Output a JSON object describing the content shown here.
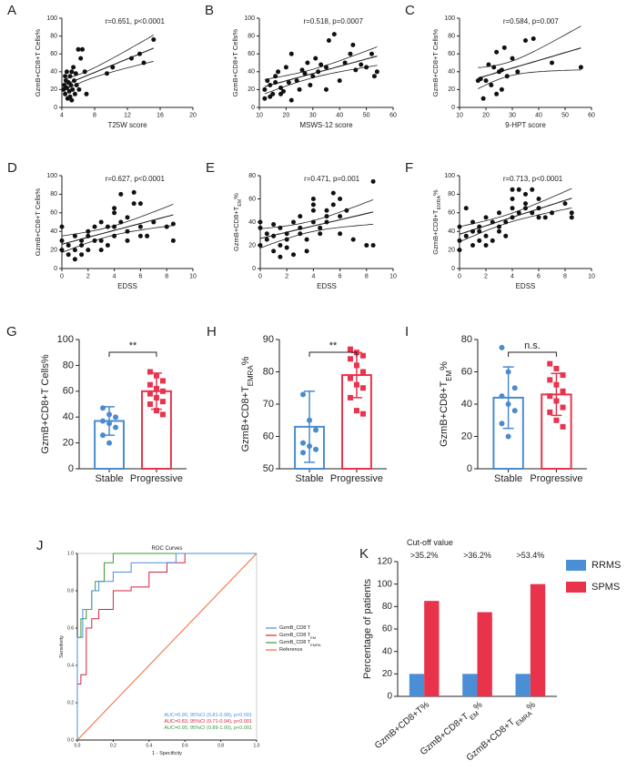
{
  "chart_data": [
    {
      "type": "scatter",
      "panel": "A",
      "annotation": "r=0.651, p<0.0001",
      "x_label": "T25W score",
      "y_label": "GzmB+CD8+T Cells%",
      "xlim": [
        4,
        20
      ],
      "xticks": [
        4,
        8,
        12,
        16,
        20
      ],
      "ylim": [
        0,
        100
      ],
      "yticks": [
        0,
        20,
        40,
        60,
        80,
        100
      ],
      "color": "#111111",
      "x": [
        4.2,
        4.3,
        4.4,
        4.5,
        4.6,
        4.7,
        4.8,
        4.9,
        5.0,
        5.0,
        5.1,
        5.2,
        5.3,
        5.4,
        5.5,
        5.6,
        5.7,
        5.8,
        6.0,
        6.1,
        6.3,
        6.5,
        6.8,
        7.0,
        5.2,
        4.4,
        10.2,
        12.5,
        13.5,
        14.0,
        15.2,
        9.5,
        4.6
      ],
      "values": [
        20,
        25,
        15,
        30,
        22,
        10,
        28,
        18,
        35,
        12,
        25,
        40,
        20,
        45,
        30,
        15,
        38,
        25,
        65,
        20,
        55,
        65,
        40,
        15,
        8,
        35,
        45,
        55,
        60,
        50,
        76,
        38,
        40
      ]
    },
    {
      "type": "scatter",
      "panel": "B",
      "annotation": "r=0.518, p=0.0007",
      "x_label": "MSWS-12 score",
      "y_label": "GzmB+CD8+T Cells%",
      "xlim": [
        10,
        60
      ],
      "xticks": [
        10,
        20,
        30,
        40,
        50,
        60
      ],
      "ylim": [
        0,
        100
      ],
      "yticks": [
        0,
        20,
        40,
        60,
        80,
        100
      ],
      "color": "#111111",
      "x": [
        12,
        12,
        13,
        14,
        15,
        16,
        17,
        18,
        19,
        20,
        21,
        22,
        24,
        25,
        26,
        28,
        29,
        30,
        31,
        32,
        33,
        35,
        36,
        38,
        40,
        42,
        44,
        45,
        48,
        50,
        52,
        53,
        54,
        14,
        16,
        27,
        22,
        18,
        35,
        46
      ],
      "values": [
        10,
        20,
        30,
        25,
        15,
        35,
        40,
        22,
        18,
        45,
        28,
        60,
        30,
        20,
        42,
        50,
        25,
        35,
        55,
        40,
        48,
        45,
        75,
        82,
        30,
        50,
        60,
        70,
        48,
        45,
        60,
        35,
        40,
        12,
        28,
        38,
        8,
        15,
        20,
        42
      ]
    },
    {
      "type": "scatter",
      "panel": "C",
      "annotation": "r=0.584, p=0.007",
      "x_label": "9-HPT score",
      "y_label": "GzmB+CD8+T Cells%",
      "xlim": [
        10,
        60
      ],
      "xticks": [
        10,
        20,
        30,
        40,
        50,
        60
      ],
      "ylim": [
        0,
        100
      ],
      "yticks": [
        0,
        20,
        40,
        60,
        80,
        100
      ],
      "color": "#111111",
      "x": [
        17,
        18,
        19,
        20,
        21,
        22,
        23,
        24,
        25,
        26,
        27,
        28,
        30,
        32,
        35,
        38,
        45,
        56,
        24,
        26
      ],
      "values": [
        30,
        32,
        10,
        30,
        48,
        25,
        45,
        62,
        40,
        20,
        67,
        35,
        55,
        40,
        75,
        77,
        50,
        45,
        15,
        42
      ]
    },
    {
      "type": "scatter",
      "panel": "D",
      "annotation": "r=0.627, p<0.0001",
      "x_label": "EDSS",
      "y_label": "GzmB+CD8+T Cells%",
      "xlim": [
        0,
        10
      ],
      "xticks": [
        0,
        2,
        4,
        6,
        8,
        10
      ],
      "ylim": [
        0,
        100
      ],
      "yticks": [
        0,
        20,
        40,
        60,
        80,
        100
      ],
      "color": "#111111",
      "x": [
        0,
        0,
        0,
        0.5,
        0.5,
        1,
        1,
        1,
        1.5,
        1.5,
        1.5,
        2,
        2,
        2,
        2.5,
        2.5,
        3,
        3,
        3,
        3.5,
        3.5,
        4,
        4,
        4,
        4,
        4.5,
        4.5,
        5,
        5,
        5,
        5.5,
        5.5,
        6,
        6,
        6,
        6.5,
        7,
        8,
        8.5,
        8.5
      ],
      "values": [
        20,
        30,
        45,
        25,
        15,
        35,
        20,
        10,
        30,
        15,
        25,
        40,
        20,
        35,
        30,
        45,
        20,
        50,
        30,
        25,
        45,
        65,
        60,
        45,
        35,
        80,
        50,
        55,
        40,
        30,
        82,
        70,
        70,
        45,
        35,
        35,
        50,
        45,
        30,
        48
      ]
    },
    {
      "type": "scatter",
      "panel": "E",
      "annotation": "r=0.471, p=0.001",
      "x_label": "EDSS",
      "y_label": [
        "GzmB+CD8+T",
        "EM",
        "%"
      ],
      "xlim": [
        0,
        10
      ],
      "xticks": [
        0,
        2,
        4,
        6,
        8,
        10
      ],
      "ylim": [
        0,
        80
      ],
      "yticks": [
        0,
        20,
        40,
        60,
        80
      ],
      "color": "#111111",
      "x": [
        0,
        0,
        0,
        0.5,
        0.5,
        1,
        1,
        1,
        1.5,
        1.5,
        1.5,
        2,
        2,
        2,
        2.5,
        2.5,
        3,
        3,
        3,
        3.5,
        3.5,
        4,
        4,
        4,
        4,
        4.5,
        4.5,
        5,
        5,
        5,
        5.5,
        5.5,
        6,
        6,
        6,
        6.5,
        7,
        8,
        8.5,
        8.5
      ],
      "values": [
        35,
        20,
        40,
        25,
        30,
        15,
        38,
        28,
        10,
        20,
        35,
        25,
        30,
        18,
        40,
        12,
        30,
        45,
        35,
        25,
        15,
        50,
        40,
        55,
        60,
        30,
        35,
        45,
        50,
        40,
        65,
        55,
        60,
        45,
        30,
        50,
        25,
        20,
        75,
        20
      ]
    },
    {
      "type": "scatter",
      "panel": "F",
      "annotation": "r=0.713, p<0.0001",
      "x_label": "EDSS",
      "y_label": [
        "GzmB+CD8+T",
        "EMRA",
        "%"
      ],
      "xlim": [
        0,
        10
      ],
      "xticks": [
        0,
        2,
        4,
        6,
        8,
        10
      ],
      "ylim": [
        0,
        100
      ],
      "yticks": [
        0,
        20,
        40,
        60,
        80,
        100
      ],
      "color": "#111111",
      "x": [
        0,
        0,
        0,
        0.5,
        0.5,
        1,
        1,
        1,
        1.5,
        1.5,
        1.5,
        2,
        2,
        2,
        2.5,
        2.5,
        3,
        3,
        3,
        3.5,
        3.5,
        4,
        4,
        4,
        4,
        4.5,
        4.5,
        5,
        5,
        5,
        5.5,
        5.5,
        6,
        6,
        6,
        6.5,
        7,
        8,
        8.5,
        8.5
      ],
      "values": [
        20,
        30,
        45,
        65,
        35,
        40,
        25,
        50,
        30,
        45,
        40,
        55,
        35,
        25,
        50,
        30,
        45,
        60,
        40,
        50,
        35,
        65,
        85,
        75,
        55,
        85,
        60,
        70,
        80,
        65,
        85,
        60,
        75,
        55,
        65,
        55,
        60,
        70,
        60,
        55
      ]
    },
    {
      "type": "dotbar",
      "panel": "G",
      "y_label": "GzmB+CD8+T Cells%",
      "categories": [
        "Stable",
        "Progressive"
      ],
      "colors": [
        "#4a8bd0",
        "#e8344e"
      ],
      "values": [
        37,
        60
      ],
      "errors": [
        11,
        14
      ],
      "points": [
        [
          47,
          42,
          40,
          37,
          35,
          32,
          26,
          20
        ],
        [
          75,
          72,
          68,
          65,
          62,
          60,
          58,
          55,
          52,
          50,
          45,
          42
        ]
      ],
      "significance": "**",
      "ylim": [
        0,
        100
      ],
      "yticks": [
        0,
        20,
        40,
        60,
        80,
        100
      ]
    },
    {
      "type": "dotbar",
      "panel": "H",
      "y_label": [
        "GzmB+CD8+T",
        "EMRA",
        "%"
      ],
      "categories": [
        "Stable",
        "Progressive"
      ],
      "colors": [
        "#4a8bd0",
        "#e8344e"
      ],
      "values": [
        63,
        79
      ],
      "errors": [
        11,
        7
      ],
      "points": [
        [
          73,
          65,
          62,
          58,
          57,
          56,
          55
        ],
        [
          87,
          86,
          85,
          84,
          82,
          80,
          78,
          76,
          75,
          72,
          68,
          67
        ]
      ],
      "significance": "**",
      "ylim": [
        50,
        90
      ],
      "yticks": [
        50,
        60,
        70,
        80,
        90
      ]
    },
    {
      "type": "dotbar",
      "panel": "I",
      "y_label": [
        "GzmB+CD8+T",
        "EM",
        "%"
      ],
      "categories": [
        "Stable",
        "Progressive"
      ],
      "colors": [
        "#4a8bd0",
        "#e8344e"
      ],
      "values": [
        44,
        46
      ],
      "errors": [
        19,
        13
      ],
      "points": [
        [
          75,
          60,
          50,
          45,
          40,
          36,
          28,
          20
        ],
        [
          65,
          62,
          58,
          55,
          52,
          48,
          45,
          42,
          38,
          35,
          30,
          26
        ]
      ],
      "significance": "n.s.",
      "ylim": [
        0,
        80
      ],
      "yticks": [
        0,
        20,
        40,
        60,
        80
      ]
    },
    {
      "type": "line",
      "panel": "J",
      "title": "ROC Curves",
      "x_label": "1 - Specificity",
      "y_label": "Sensitivity",
      "xlim": [
        0,
        1
      ],
      "xticks": [
        {
          "value": 0,
          "label": "0.0"
        },
        0.2,
        0.4,
        0.6,
        0.8,
        {
          "value": 1,
          "label": "1.0"
        }
      ],
      "ylim": [
        0,
        1
      ],
      "yticks": [
        {
          "value": 0,
          "label": "0.0"
        },
        0.2,
        0.4,
        0.6,
        0.8,
        {
          "value": 1,
          "label": "1.0"
        }
      ],
      "series": [
        {
          "name": [
            "GzmB_CD8 T"
          ],
          "color": "#4a90d9",
          "auc_label": "AUC=0.90, 95%CI (0.81-0.99), p<0.001",
          "x": [
            0,
            0,
            0.03,
            0.03,
            0.08,
            0.08,
            0.12,
            0.12,
            0.2,
            0.2,
            0.3,
            0.3,
            0.55,
            0.55,
            1
          ],
          "values": [
            0,
            0.55,
            0.55,
            0.7,
            0.7,
            0.8,
            0.8,
            0.85,
            0.85,
            0.9,
            0.9,
            0.95,
            0.95,
            1,
            1
          ]
        },
        {
          "name": [
            "GzmB_CD8 T",
            "EM"
          ],
          "color": "#d6243f",
          "auc_label": "AUC=0.83, 95%CI (0.71-0.94), p<0.001",
          "x": [
            0,
            0,
            0.02,
            0.02,
            0.05,
            0.05,
            0.08,
            0.08,
            0.12,
            0.12,
            0.2,
            0.2,
            0.3,
            0.3,
            0.4,
            0.4,
            0.5,
            0.5,
            0.6,
            0.6,
            1
          ],
          "values": [
            0,
            0.3,
            0.3,
            0.35,
            0.35,
            0.6,
            0.6,
            0.65,
            0.65,
            0.7,
            0.7,
            0.8,
            0.8,
            0.82,
            0.82,
            0.9,
            0.9,
            0.95,
            0.95,
            1,
            1
          ]
        },
        {
          "name": [
            "GzmB_CD8 T",
            "EMRA"
          ],
          "color": "#3a9a3a",
          "auc_label": "AUC=0.95, 95%CI (0.89-1.00), p<0.001",
          "x": [
            0,
            0,
            0.02,
            0.02,
            0.05,
            0.05,
            0.08,
            0.08,
            0.1,
            0.1,
            0.15,
            0.15,
            0.2,
            0.2,
            1
          ],
          "values": [
            0,
            0.55,
            0.55,
            0.65,
            0.65,
            0.7,
            0.7,
            0.8,
            0.8,
            0.85,
            0.85,
            0.95,
            0.95,
            1,
            1
          ]
        },
        {
          "name": [
            "Reference"
          ],
          "color": "#f26b3a",
          "x": [
            0,
            1
          ],
          "values": [
            0,
            1
          ]
        }
      ]
    },
    {
      "type": "bar",
      "panel": "K",
      "y_label": "Percentage of patients",
      "annotation": "Cut-off value",
      "categories": [
        [
          "GzmB+CD8+T%"
        ],
        [
          "GzmB+CD8+T",
          "EM",
          "%"
        ],
        [
          "GzmB+CD8+T",
          "EMRA",
          "%"
        ]
      ],
      "cutoffs": [
        ">35.2%",
        ">36.2%",
        ">53.4%"
      ],
      "ylim": [
        0,
        120
      ],
      "yticks": [
        0,
        20,
        40,
        60,
        80,
        100,
        120
      ],
      "series": [
        {
          "name": "RRMS",
          "color": "#4a8fd6",
          "values": [
            20,
            20,
            20
          ]
        },
        {
          "name": "SPMS",
          "color": "#e8334a",
          "values": [
            85,
            75,
            100
          ]
        }
      ]
    }
  ]
}
